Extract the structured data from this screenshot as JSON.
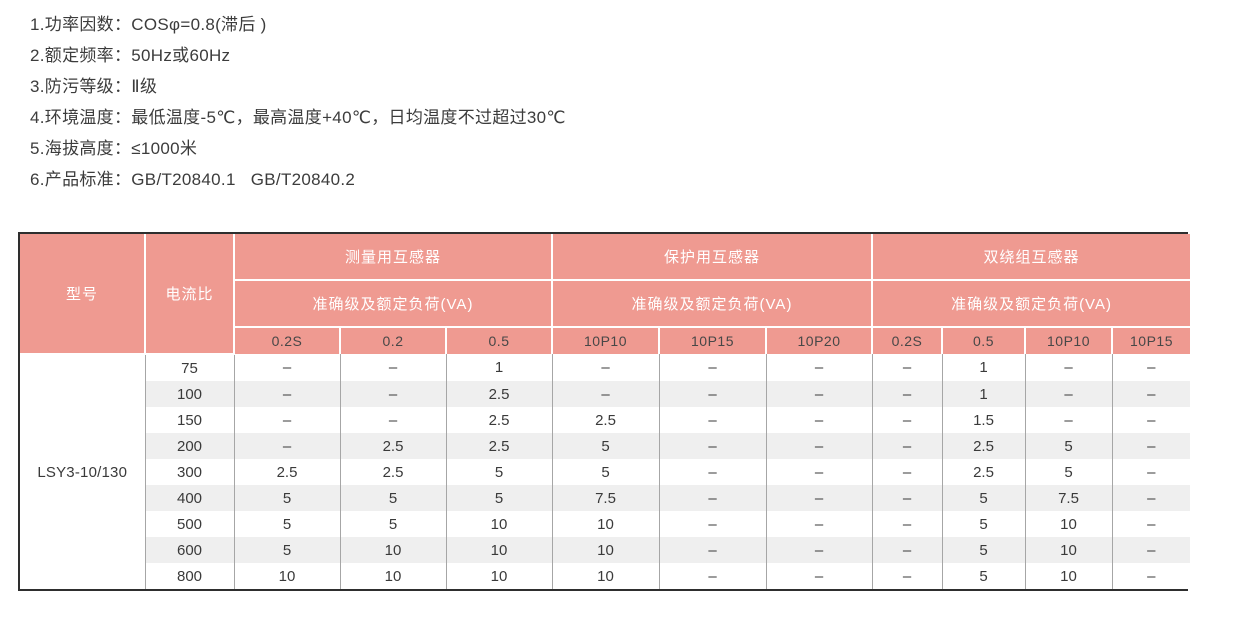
{
  "specs": {
    "items": [
      "1.功率因数：COSφ=0.8(滞后 )",
      "2.额定频率：50Hz或60Hz",
      "3.防污等级：Ⅱ级",
      "4.环境温度：最低温度-5℃，最高温度+40℃，日均温度不过超过30℃",
      "5.海拔高度：≤1000米",
      "6.产品标准：GB/T20840.1   GB/T20840.2"
    ]
  },
  "table": {
    "model_header": "型号",
    "ratio_header": "电流比",
    "groups": [
      {
        "title": "测量用互感器",
        "subtitle": "准确级及额定负荷(VA)",
        "cols": [
          "0.2S",
          "0.2",
          "0.5"
        ]
      },
      {
        "title": "保护用互感器",
        "subtitle": "准确级及额定负荷(VA)",
        "cols": [
          "10P10",
          "10P15",
          "10P20"
        ]
      },
      {
        "title": "双绕组互感器",
        "subtitle": "准确级及额定负荷(VA)",
        "cols": [
          "0.2S",
          "0.5",
          "10P10",
          "10P15"
        ]
      }
    ],
    "model": "LSY3-10/130",
    "rows": [
      {
        "ratio": "75",
        "values": [
          "–",
          "–",
          "1",
          "–",
          "–",
          "–",
          "–",
          "1",
          "–",
          "–"
        ]
      },
      {
        "ratio": "100",
        "values": [
          "–",
          "–",
          "2.5",
          "–",
          "–",
          "–",
          "–",
          "1",
          "–",
          "–"
        ]
      },
      {
        "ratio": "150",
        "values": [
          "–",
          "–",
          "2.5",
          "2.5",
          "–",
          "–",
          "–",
          "1.5",
          "–",
          "–"
        ]
      },
      {
        "ratio": "200",
        "values": [
          "–",
          "2.5",
          "2.5",
          "5",
          "–",
          "–",
          "–",
          "2.5",
          "5",
          "–"
        ]
      },
      {
        "ratio": "300",
        "values": [
          "2.5",
          "2.5",
          "5",
          "5",
          "–",
          "–",
          "–",
          "2.5",
          "5",
          "–"
        ]
      },
      {
        "ratio": "400",
        "values": [
          "5",
          "5",
          "5",
          "7.5",
          "–",
          "–",
          "–",
          "5",
          "7.5",
          "–"
        ]
      },
      {
        "ratio": "500",
        "values": [
          "5",
          "5",
          "10",
          "10",
          "–",
          "–",
          "–",
          "5",
          "10",
          "–"
        ]
      },
      {
        "ratio": "600",
        "values": [
          "5",
          "10",
          "10",
          "10",
          "–",
          "–",
          "–",
          "5",
          "10",
          "–"
        ]
      },
      {
        "ratio": "800",
        "values": [
          "10",
          "10",
          "10",
          "10",
          "–",
          "–",
          "–",
          "5",
          "10",
          "–"
        ]
      }
    ]
  },
  "colors": {
    "header_pink": "#ef9a91",
    "stripe_gray": "#efefef",
    "header_text": "#ffffff",
    "subheader_text": "#474747",
    "body_text": "#3a3a3a",
    "outer_border": "#2e2e2e",
    "grid_line": "#a6a6a6"
  }
}
